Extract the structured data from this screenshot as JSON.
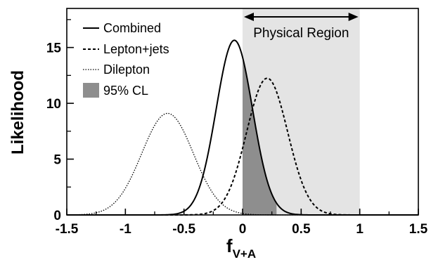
{
  "chart_data": {
    "type": "line",
    "ylabel": "Likelihood",
    "xlabel": {
      "main": "f",
      "sub": "V+A"
    },
    "xlim": [
      -1.5,
      1.5
    ],
    "ylim": [
      0,
      18.5
    ],
    "x_ticks": [
      -1.5,
      -1,
      -0.5,
      0,
      0.5,
      1,
      1.5
    ],
    "x_tick_labels": [
      "-1.5",
      "-1",
      "-0.5",
      "0",
      "0.5",
      "1",
      "1.5"
    ],
    "y_ticks": [
      0,
      5,
      10,
      15
    ],
    "y_tick_labels": [
      "0",
      "5",
      "10",
      "15"
    ],
    "physical_region": {
      "label": "Physical Region",
      "x_range": [
        0,
        1
      ],
      "color": "#e4e4e4"
    },
    "confidence_band": {
      "label": "95% CL",
      "x_range": [
        0,
        0.29
      ],
      "color": "#8e8e8e"
    },
    "series": [
      {
        "name": "Combined",
        "style": "solid",
        "peak_x": -0.07,
        "peak_y": 15.65,
        "sigma": 0.155
      },
      {
        "name": "Lepton+jets",
        "style": "dashed",
        "peak_x": 0.21,
        "peak_y": 12.25,
        "sigma": 0.175
      },
      {
        "name": "Dilepton",
        "style": "dotted",
        "peak_x": -0.64,
        "peak_y": 9.1,
        "sigma": 0.22
      }
    ],
    "legend": {
      "placement": "top-left",
      "entries": [
        "Combined",
        "Lepton+jets",
        "Dilepton",
        "95% CL"
      ]
    }
  }
}
